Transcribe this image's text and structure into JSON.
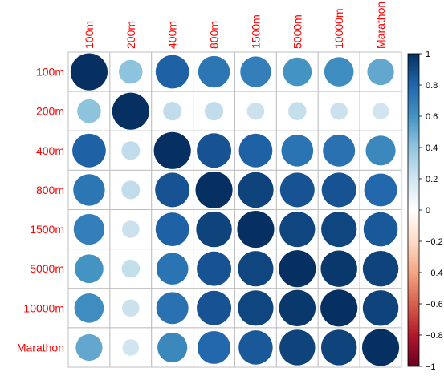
{
  "chart_data": {
    "type": "heatmap",
    "subtype": "correlation-circle-matrix",
    "categories": [
      "100m",
      "200m",
      "400m",
      "800m",
      "1500m",
      "5000m",
      "10000m",
      "Marathon"
    ],
    "column_labels_visible": [
      "100m",
      "200m",
      "400m",
      "800m",
      "1500m",
      "5000m",
      "10000m",
      "Marathon"
    ],
    "values": [
      [
        1.0,
        0.41,
        0.82,
        0.73,
        0.69,
        0.6,
        0.63,
        0.52
      ],
      [
        0.41,
        1.0,
        0.25,
        0.25,
        0.22,
        0.24,
        0.22,
        0.2
      ],
      [
        0.82,
        0.25,
        1.0,
        0.87,
        0.82,
        0.74,
        0.75,
        0.65
      ],
      [
        0.73,
        0.25,
        0.87,
        1.0,
        0.93,
        0.87,
        0.87,
        0.79
      ],
      [
        0.69,
        0.22,
        0.82,
        0.93,
        1.0,
        0.92,
        0.92,
        0.85
      ],
      [
        0.6,
        0.24,
        0.74,
        0.87,
        0.92,
        1.0,
        0.97,
        0.93
      ],
      [
        0.63,
        0.22,
        0.75,
        0.87,
        0.92,
        0.97,
        1.0,
        0.93
      ],
      [
        0.52,
        0.2,
        0.65,
        0.79,
        0.85,
        0.93,
        0.93,
        1.0
      ]
    ],
    "colorbar": {
      "ticks": [
        "1",
        "0.8",
        "0.6",
        "0.4",
        "0.2",
        "0",
        "−0.2",
        "−0.4",
        "−0.6",
        "−0.8",
        "−1"
      ],
      "range": [
        -1,
        1
      ],
      "colors": [
        "#67001F",
        "#B2182B",
        "#D6604D",
        "#F4A582",
        "#FDDBC7",
        "#FFFFFF",
        "#D1E5F0",
        "#92C5DE",
        "#4393C3",
        "#2166AC",
        "#053061"
      ]
    },
    "label_color": "#FF0000",
    "grid": true
  }
}
